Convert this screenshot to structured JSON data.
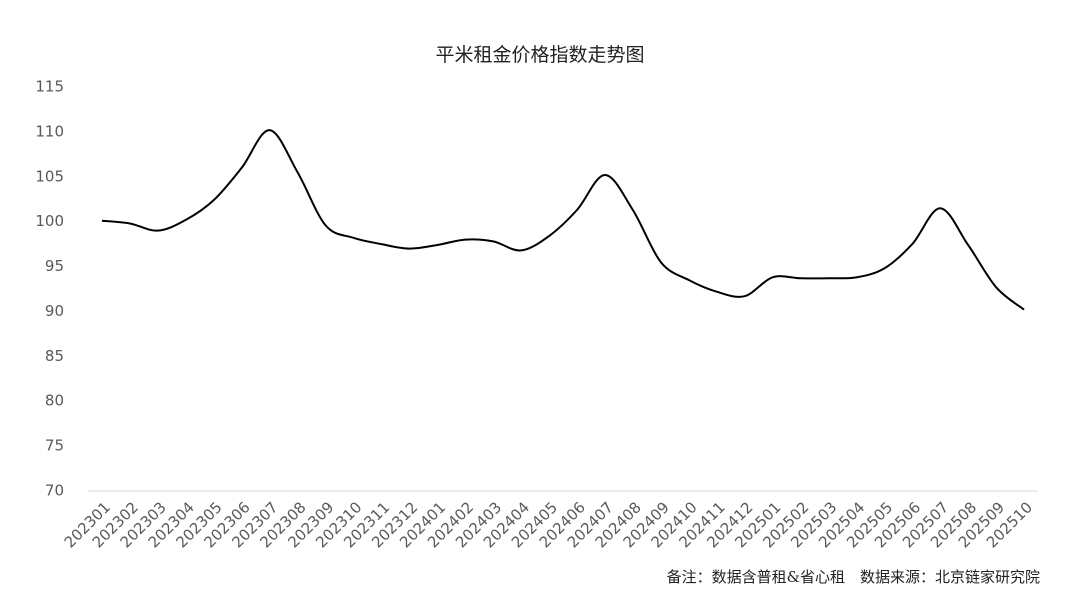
{
  "chart_data": {
    "type": "line",
    "title": "平米租金价格指数走势图",
    "categories": [
      "202301",
      "202302",
      "202303",
      "202304",
      "202305",
      "202306",
      "202307",
      "202308",
      "202309",
      "202310",
      "202311",
      "202312",
      "202401",
      "202402",
      "202403",
      "202404",
      "202405",
      "202406",
      "202407",
      "202408",
      "202409",
      "202410",
      "202411",
      "202412",
      "202501",
      "202502",
      "202503",
      "202504",
      "202505",
      "202506",
      "202507",
      "202508",
      "202509",
      "202510"
    ],
    "series": [
      {
        "name": "平米租金价格指数",
        "color": "#000000",
        "values": [
          100.1,
          99.8,
          99.0,
          100.2,
          102.4,
          106.0,
          110.2,
          105.5,
          99.6,
          98.2,
          97.5,
          97.0,
          97.4,
          98.0,
          97.8,
          96.8,
          98.4,
          101.3,
          105.2,
          101.3,
          95.5,
          93.5,
          92.2,
          91.7,
          93.8,
          93.7,
          93.7,
          93.8,
          94.8,
          97.5,
          101.5,
          97.4,
          92.7,
          90.2
        ]
      }
    ],
    "ylim": [
      70,
      115
    ],
    "yticks": [
      70,
      75,
      80,
      85,
      90,
      95,
      100,
      105,
      110,
      115
    ],
    "grid": false,
    "note": "备注：数据含普租&省心租　数据来源：北京链家研究院"
  }
}
